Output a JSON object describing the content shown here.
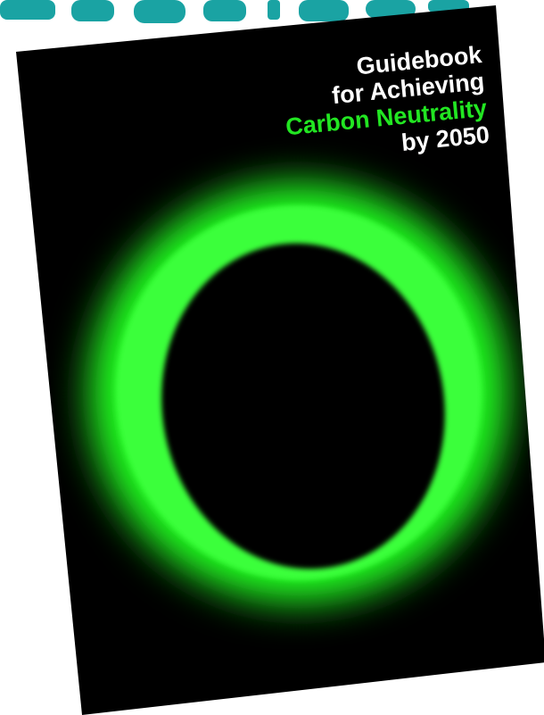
{
  "cover": {
    "title_lines": [
      "Guidebook",
      "for Achieving",
      "Carbon Neutrality",
      "by 2050"
    ]
  }
}
